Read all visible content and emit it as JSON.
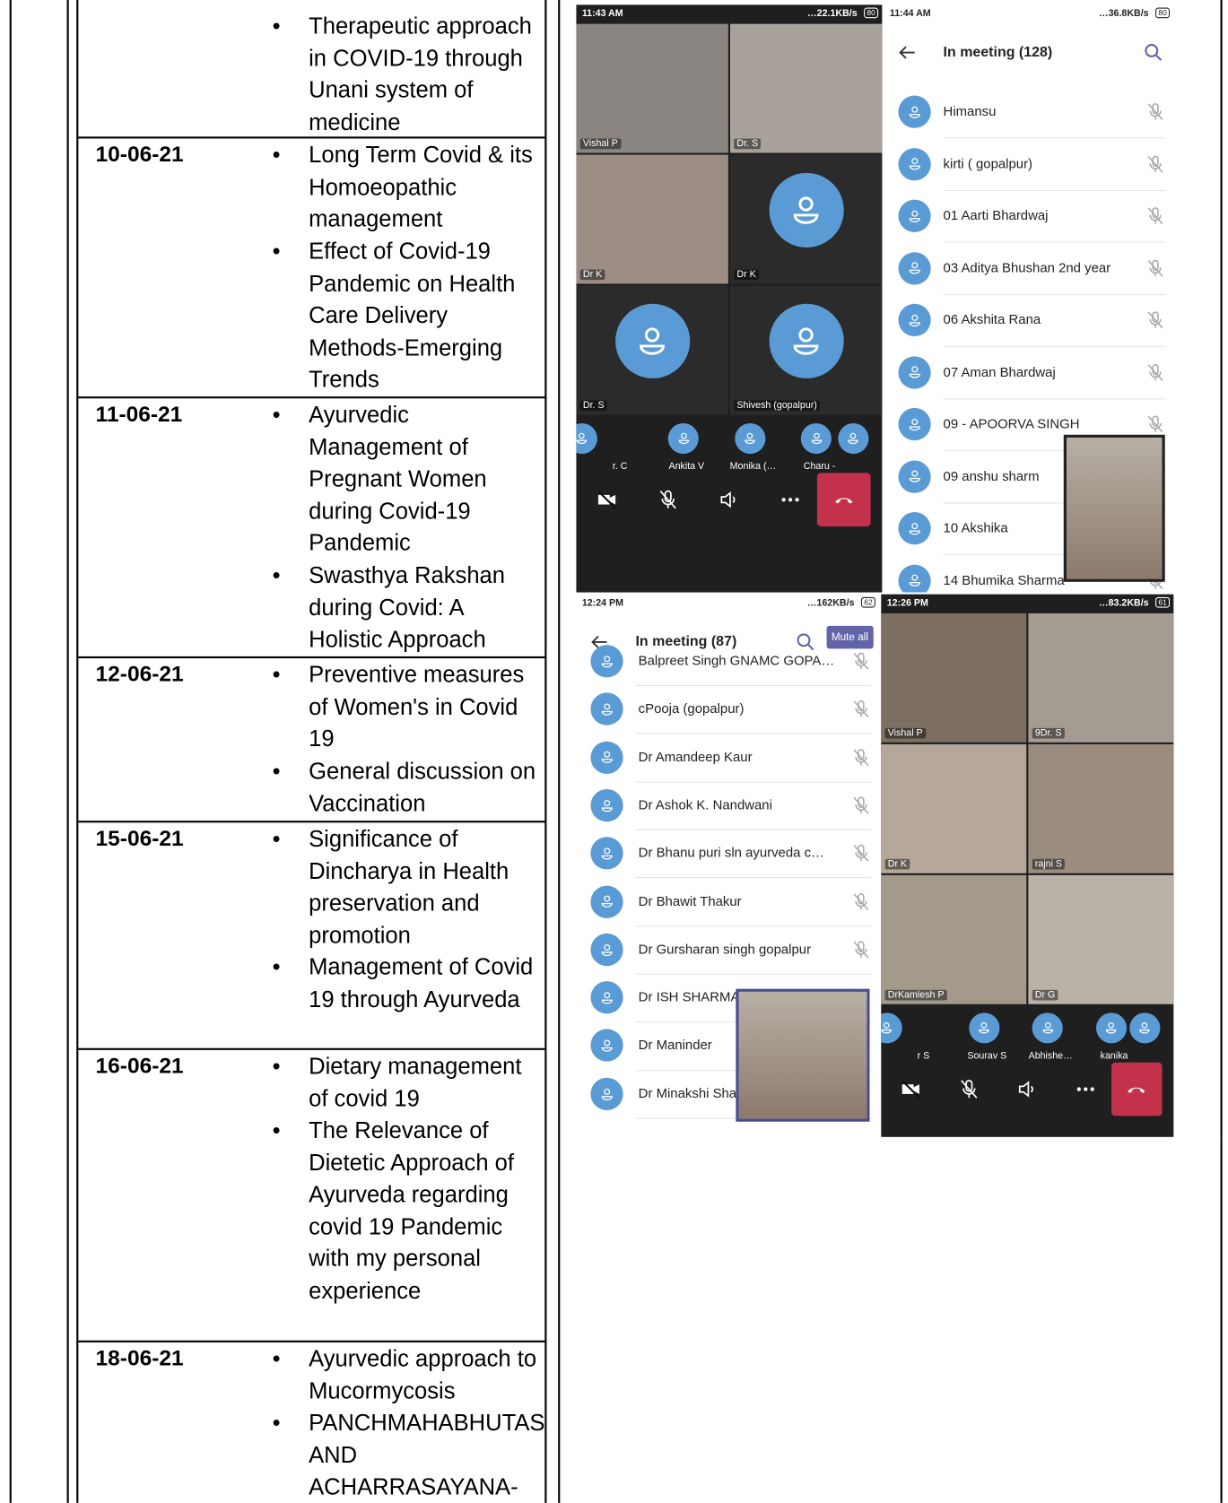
{
  "table": {
    "rows": [
      {
        "topics": [
          "Therapeutic approach in COVID-19 through Unani system of medicine"
        ]
      },
      {
        "date": "10-06-21",
        "topics": [
          "Long Term Covid & its Homoeopathic management",
          "Effect of Covid-19 Pandemic on Health Care Delivery Methods-Emerging Trends"
        ]
      },
      {
        "date": "11-06-21",
        "topics": [
          "Ayurvedic Management of Pregnant Women during Covid-19 Pandemic",
          "Swasthya Rakshan during Covid: A Holistic Approach"
        ]
      },
      {
        "date": "12-06-21",
        "topics": [
          "Preventive measures of Women's in Covid 19",
          "General discussion on Vaccination"
        ]
      },
      {
        "date": "15-06-21",
        "topics": [
          "Significance of Dincharya in Health preservation and promotion",
          "Management of Covid 19 through Ayurveda"
        ]
      },
      {
        "date": "16-06-21",
        "topics": [
          "Dietary management of covid 19",
          "The Relevance of Dietetic Approach of Ayurveda regarding covid 19 Pandemic with my personal experience"
        ]
      },
      {
        "date": "18-06-21",
        "topics": [
          "Ayurvedic approach to Mucormycosis",
          "PANCHMAHABHUTAS AND ACHARRASAYANA-"
        ]
      }
    ]
  },
  "screenshots": [
    {
      "time": "11:43 AM",
      "network": "…22.1KB/s",
      "battery": "80",
      "tiles": [
        "Vishal P",
        "Dr. S",
        "Dr K",
        "Dr K",
        "Dr. S",
        "Shivesh (gopalpur)"
      ],
      "strip": [
        "r. C",
        "Ankita V",
        "Monika (…",
        "Charu -"
      ]
    },
    {
      "time": "11:44 AM",
      "network": "…36.8KB/s",
      "battery": "80",
      "header": "In meeting (128)",
      "participants": [
        "Himansu",
        "kirti  ( gopalpur)",
        "01 Aarti Bhardwaj",
        "03 Aditya Bhushan 2nd year",
        "06 Akshita Rana",
        "07 Aman Bhardwaj",
        "09 - APOORVA  SINGH",
        "09 anshu sharm",
        "10 Akshika",
        "14 Bhumika Sharma"
      ]
    },
    {
      "time": "12:24 PM",
      "network": "…162KB/s",
      "battery": "62",
      "header": "In meeting (87)",
      "button": "Mute all",
      "participants": [
        "Balpreet Singh GNAMC GOPA…",
        "cPooja (gopalpur)",
        "Dr Amandeep Kaur",
        "Dr Ashok K. Nandwani",
        "Dr Bhanu puri sln ayurveda  c…",
        "Dr Bhawit Thakur",
        "Dr Gursharan singh gopalpur",
        "Dr ISH SHARMA",
        "Dr Maninder",
        "Dr Minakshi Sha"
      ]
    },
    {
      "time": "12:26 PM",
      "network": "…83.2KB/s",
      "battery": "61",
      "tiles": [
        "Vishal P",
        "9Dr. S",
        "Dr K",
        "rajni S",
        "DrKamlesh P",
        "Dr G"
      ],
      "strip": [
        "r S",
        "Sourav S",
        "Abhishe…",
        "kanika"
      ]
    }
  ]
}
